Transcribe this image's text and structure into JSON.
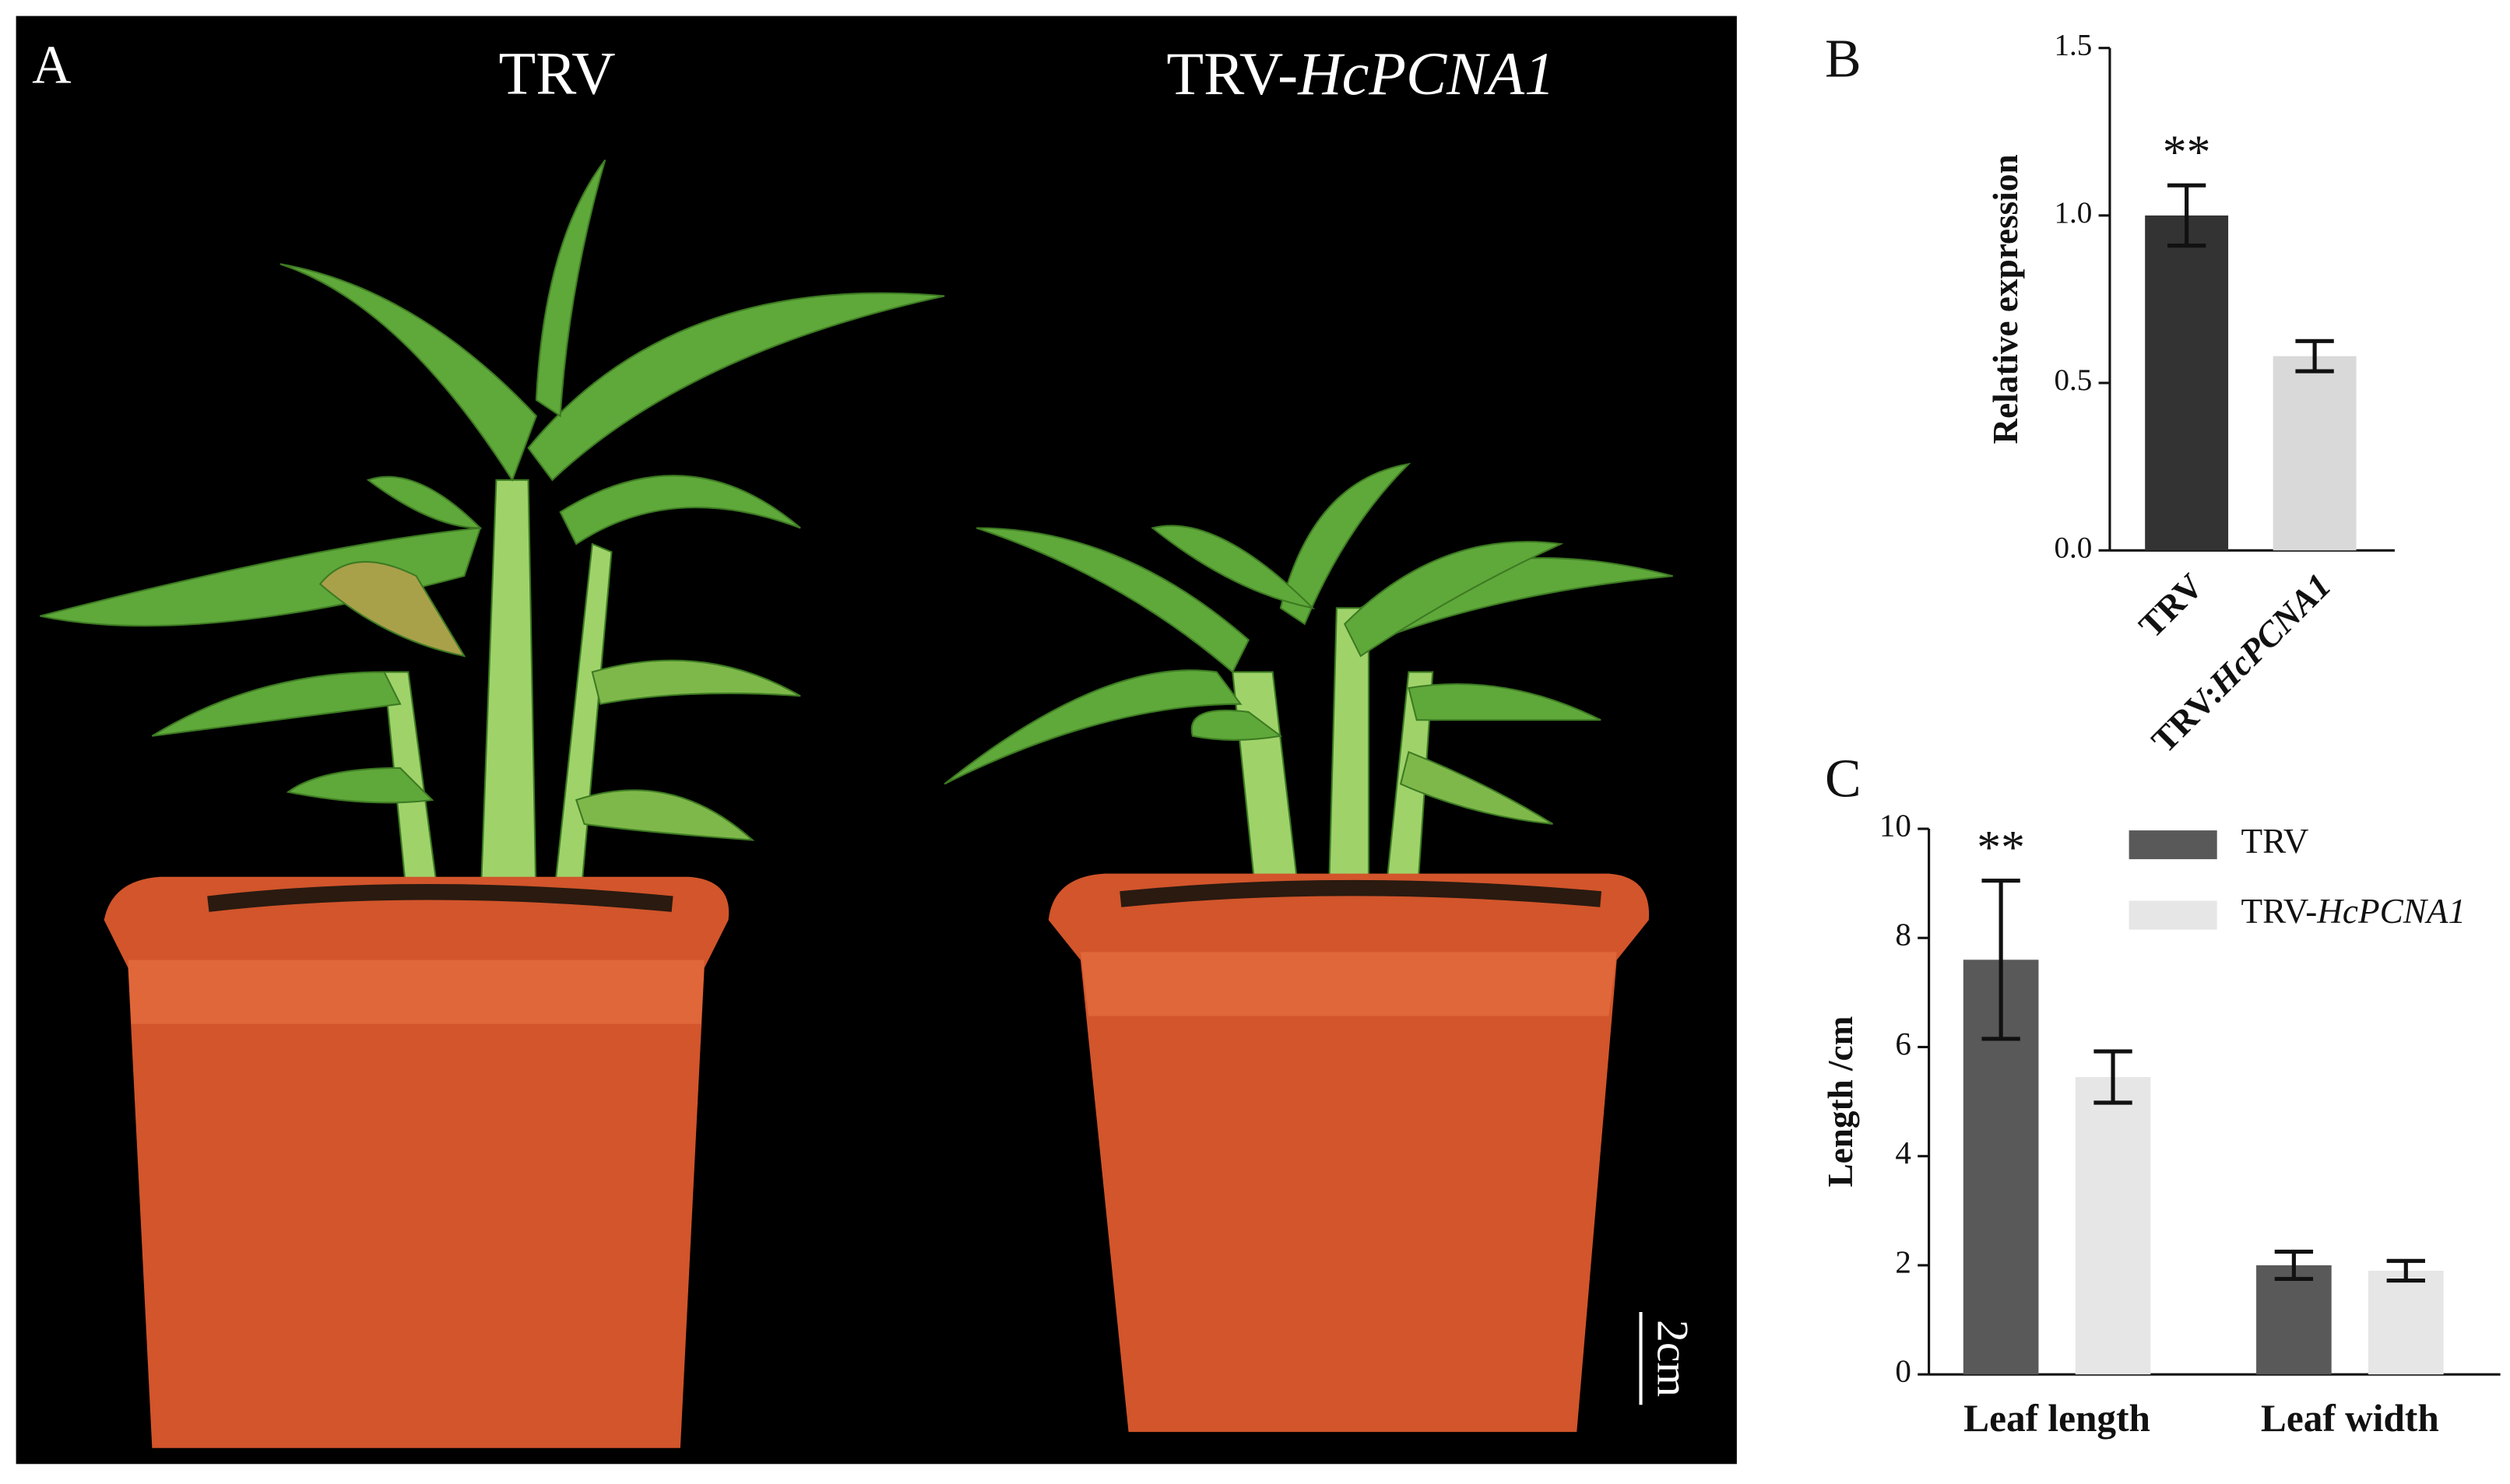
{
  "photo": {
    "panel_label": "A",
    "left_label": "TRV",
    "right_label": "TRV-HcPCNA1",
    "scale_bar": "2cm"
  },
  "chart_data": [
    {
      "type": "bar",
      "panel_label": "B",
      "ylabel": "Relative expression",
      "annotation": "**",
      "categories": [
        "TRV",
        "TRV:HcPCNA1"
      ],
      "values": [
        1.0,
        0.58
      ],
      "errors": [
        0.09,
        0.045
      ],
      "colors": [
        "#333333",
        "#d9d9d9"
      ],
      "ylim": [
        0,
        1.5
      ],
      "yticks": [
        {
          "value": 0,
          "label": "0.0"
        },
        {
          "value": 0.5,
          "label": "0.5"
        },
        {
          "value": 1,
          "label": "1.0"
        },
        {
          "value": 1.5,
          "label": "1.5"
        }
      ]
    },
    {
      "type": "bar",
      "panel_label": "C",
      "ylabel": "Length /cm",
      "annotation": "**",
      "categories": [
        "Leaf length",
        "Leaf width"
      ],
      "series": [
        {
          "name": "TRV",
          "color": "#595959",
          "values": [
            7.6,
            2.0
          ],
          "errors": [
            1.45,
            0.25
          ]
        },
        {
          "name": "TRV-HcPCNA1",
          "color": "#e6e6e6",
          "values": [
            5.45,
            1.9
          ],
          "errors": [
            0.47,
            0.18
          ]
        }
      ],
      "ylim": [
        0,
        10
      ],
      "yticks": [
        0,
        2,
        4,
        6,
        8,
        10
      ],
      "legend": "top-right"
    }
  ]
}
